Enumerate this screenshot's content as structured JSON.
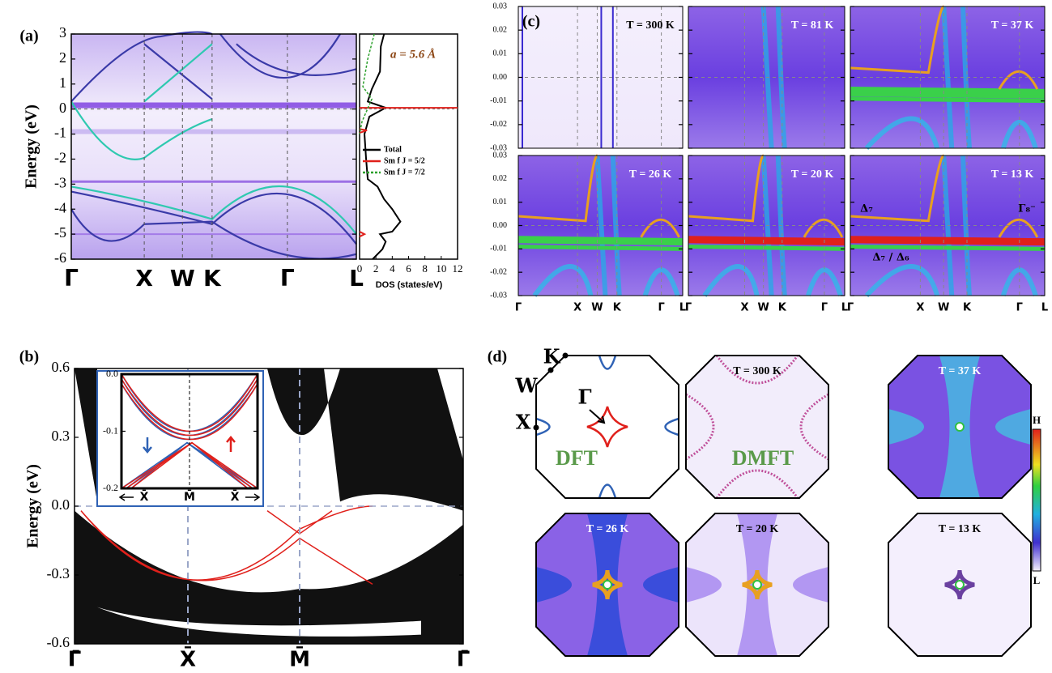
{
  "figure": {
    "a": {
      "label": "(a)",
      "ylabel": "Energy (eV)",
      "ylim": [
        -6,
        3
      ],
      "yticks": [
        3,
        2,
        1,
        0,
        -1,
        -2,
        -3,
        -4,
        -5,
        -6
      ],
      "kpoints": [
        "Γ",
        "X",
        "W",
        "K",
        "Γ",
        "L"
      ],
      "annotation": "a = 5.6 Å",
      "dos": {
        "xlabel": "DOS (states/eV)",
        "xlim": [
          0,
          12
        ],
        "xticks": [
          0,
          2,
          4,
          6,
          8,
          10,
          12
        ],
        "legend": [
          {
            "name": "Total",
            "color": "#000000"
          },
          {
            "name": "Sm f J = 5/2",
            "color": "#e0201b"
          },
          {
            "name": "Sm f J = 7/2",
            "color": "#2ca02c"
          }
        ]
      }
    },
    "b": {
      "label": "(b)",
      "ylabel": "Energy (eV)",
      "ylim": [
        -0.6,
        0.6
      ],
      "yticks": [
        0.6,
        0.3,
        {
          "value": 0,
          "label": "0.0"
        },
        -0.3,
        -0.6
      ],
      "kpoints": [
        "Γ̄",
        "X̄",
        "M̄",
        "Γ̄"
      ],
      "inset": {
        "ylim": [
          -0.2,
          0
        ],
        "yticks": [
          {
            "value": 0,
            "label": "0.0"
          },
          -0.1,
          -0.2
        ],
        "kpoints": [
          "X̄",
          "M̄",
          "X̄"
        ]
      }
    },
    "c": {
      "label": "(c)",
      "ylim": [
        -0.03,
        0.03
      ],
      "yticks": [
        0.03,
        0.02,
        0.01,
        {
          "value": 0,
          "label": "0.00"
        },
        -0.01,
        -0.02,
        -0.03
      ],
      "kpoints": [
        "Γ",
        "X",
        "W",
        "K",
        "Γ",
        "L"
      ],
      "temperatures": [
        "T = 300 K",
        "T = 81 K",
        "T = 37 K",
        "T = 26 K",
        "T = 20 K",
        "T = 13 K"
      ],
      "annotations": [
        "Δ₇",
        "Γ₈⁻",
        "Δ₇ / Δ₆"
      ]
    },
    "d": {
      "label": "(d)",
      "kpoints": [
        "K",
        "W",
        "X",
        "Γ"
      ],
      "methods": [
        "DFT",
        "DMFT"
      ],
      "temperatures": [
        "T = 300 K",
        "T = 37 K",
        "T = 26 K",
        "T = 20 K",
        "T = 13 K"
      ],
      "colorbar": [
        "H",
        "L"
      ]
    }
  }
}
